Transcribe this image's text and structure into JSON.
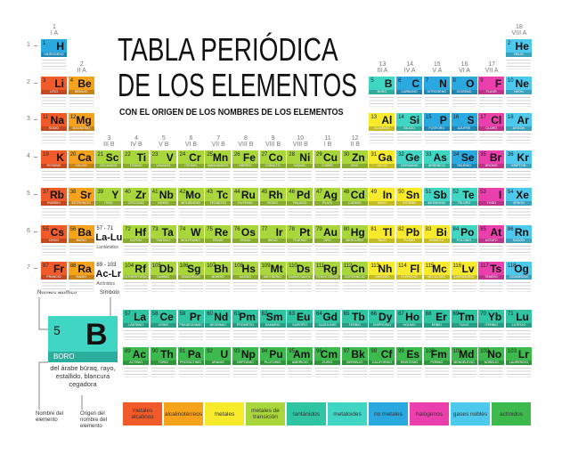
{
  "title": [
    "TABLA PERIÓDICA",
    "DE LOS ELEMENTOS"
  ],
  "subtitle": "CON EL ORIGEN DE LOS NOMBRES DE LOS ELEMENTOS",
  "groups": [
    {
      "number": 1,
      "label": "I A"
    },
    {
      "number": 2,
      "label": "II A"
    },
    {
      "number": 3,
      "label": "III B"
    },
    {
      "number": 4,
      "label": "IV B"
    },
    {
      "number": 5,
      "label": "V B"
    },
    {
      "number": 6,
      "label": "VI B"
    },
    {
      "number": 7,
      "label": "VII B"
    },
    {
      "number": 8,
      "label": "VIII B"
    },
    {
      "number": 9,
      "label": "VIII B"
    },
    {
      "number": 10,
      "label": "VIII B"
    },
    {
      "number": 11,
      "label": "I B"
    },
    {
      "number": 12,
      "label": "II B"
    },
    {
      "number": 13,
      "label": "III A"
    },
    {
      "number": 14,
      "label": "IV A"
    },
    {
      "number": 15,
      "label": "V A"
    },
    {
      "number": 16,
      "label": "VI A"
    },
    {
      "number": 17,
      "label": "VII A"
    },
    {
      "number": 18,
      "label": "VIII A"
    }
  ],
  "periods": [
    1,
    2,
    3,
    4,
    5,
    6,
    7
  ],
  "placeholders": [
    {
      "range": "57 - 71",
      "symbols": "La-Lu",
      "label": "Lantánidos"
    },
    {
      "range": "89 - 103",
      "symbols": "Ac-Lr",
      "label": "Actínidos"
    }
  ],
  "key": {
    "atomic_number_label": "Número atómico",
    "symbol_label": "Símbolo",
    "number": 5,
    "symbol": "B",
    "name": "BORO",
    "origin": "del árabe būraq, rayo, estallido, blancura cegadora",
    "name_label": "Nombre del elemento",
    "origin_label": "Origen del nombre del elemento"
  },
  "legend": [
    {
      "label": "metales alcalinos",
      "color": "#f15a29",
      "elements": [
        {
          "number": 3,
          "symbol": "Li",
          "name": "LITIO"
        },
        {
          "number": 11,
          "symbol": "Na",
          "name": "SODIO"
        },
        {
          "number": 19,
          "symbol": "K",
          "name": "POTASIO"
        },
        {
          "number": 37,
          "symbol": "Rb",
          "name": "RUBIDIO"
        },
        {
          "number": 55,
          "symbol": "Cs",
          "name": "CESIO"
        },
        {
          "number": 87,
          "symbol": "Fr",
          "name": "FRANCIO"
        }
      ]
    },
    {
      "label": "alcalinotérreos",
      "color": "#f7a21b",
      "elements": [
        {
          "number": 4,
          "symbol": "Be",
          "name": "BERILIO"
        },
        {
          "number": 12,
          "symbol": "Mg",
          "name": "MAGNESIO"
        },
        {
          "number": 20,
          "symbol": "Ca",
          "name": "CALCIO"
        },
        {
          "number": 38,
          "symbol": "Sr",
          "name": "ESTRONCIO"
        },
        {
          "number": 56,
          "symbol": "Ba",
          "name": "BARIO"
        },
        {
          "number": 88,
          "symbol": "Ra",
          "name": "RADIO"
        }
      ]
    },
    {
      "label": "metales",
      "color": "#f6ea2b",
      "elements": [
        {
          "number": 13,
          "symbol": "Al",
          "name": "ALUMINIO"
        },
        {
          "number": 31,
          "symbol": "Ga",
          "name": "GALIO"
        },
        {
          "number": 49,
          "symbol": "In",
          "name": "INDIO"
        },
        {
          "number": 50,
          "symbol": "Sn",
          "name": "ESTAÑO"
        },
        {
          "number": 81,
          "symbol": "Tl",
          "name": "TALIO"
        },
        {
          "number": 82,
          "symbol": "Pb",
          "name": "PLOMO"
        },
        {
          "number": 83,
          "symbol": "Bi",
          "name": "BISMUTO"
        },
        {
          "number": 113,
          "symbol": "Nh",
          "name": "NIHONIO"
        },
        {
          "number": 114,
          "symbol": "Fl",
          "name": "FLEROVIO"
        },
        {
          "number": 115,
          "symbol": "Mc",
          "name": "MOSCOVIO"
        },
        {
          "number": 116,
          "symbol": "Lv",
          "name": "LIVERMORIO"
        }
      ]
    },
    {
      "label": "metales de transición",
      "color": "#a9d63a",
      "elements": [
        {
          "number": 21,
          "symbol": "Sc",
          "name": "ESCANDIO"
        },
        {
          "number": 22,
          "symbol": "Ti",
          "name": "TITANIO"
        },
        {
          "number": 23,
          "symbol": "V",
          "name": "VANADIO"
        },
        {
          "number": 24,
          "symbol": "Cr",
          "name": "CROMO"
        },
        {
          "number": 25,
          "symbol": "Mn",
          "name": "MANGANESO"
        },
        {
          "number": 26,
          "symbol": "Fe",
          "name": "HIERRO"
        },
        {
          "number": 27,
          "symbol": "Co",
          "name": "COBALTO"
        },
        {
          "number": 28,
          "symbol": "Ni",
          "name": "NÍQUEL"
        },
        {
          "number": 29,
          "symbol": "Cu",
          "name": "COBRE"
        },
        {
          "number": 30,
          "symbol": "Zn",
          "name": "ZINC"
        },
        {
          "number": 39,
          "symbol": "Y",
          "name": "ITRIO"
        },
        {
          "number": 40,
          "symbol": "Zr",
          "name": "CIRCONIO"
        },
        {
          "number": 41,
          "symbol": "Nb",
          "name": "NIOBIO"
        },
        {
          "number": 42,
          "symbol": "Mo",
          "name": "MOLIBDENO"
        },
        {
          "number": 43,
          "symbol": "Tc",
          "name": "TECNECIO"
        },
        {
          "number": 44,
          "symbol": "Ru",
          "name": "RUTENIO"
        },
        {
          "number": 45,
          "symbol": "Rh",
          "name": "RODIO"
        },
        {
          "number": 46,
          "symbol": "Pd",
          "name": "PALADIO"
        },
        {
          "number": 47,
          "symbol": "Ag",
          "name": "PLATA"
        },
        {
          "number": 48,
          "symbol": "Cd",
          "name": "CADMIO"
        },
        {
          "number": 72,
          "symbol": "Hf",
          "name": "HAFNIO"
        },
        {
          "number": 73,
          "symbol": "Ta",
          "name": "TÁNTALO"
        },
        {
          "number": 74,
          "symbol": "W",
          "name": "WOLFRAMIO"
        },
        {
          "number": 75,
          "symbol": "Re",
          "name": "RENIO"
        },
        {
          "number": 76,
          "symbol": "Os",
          "name": "OSMIO"
        },
        {
          "number": 77,
          "symbol": "Ir",
          "name": "IRIDIO"
        },
        {
          "number": 78,
          "symbol": "Pt",
          "name": "PLATINO"
        },
        {
          "number": 79,
          "symbol": "Au",
          "name": "ORO"
        },
        {
          "number": 80,
          "symbol": "Hg",
          "name": "MERCURIO"
        },
        {
          "number": 104,
          "symbol": "Rf",
          "name": "RUTHERFORDIO"
        },
        {
          "number": 105,
          "symbol": "Db",
          "name": "DUBNIO"
        },
        {
          "number": 106,
          "symbol": "Sg",
          "name": "SEABORGIO"
        },
        {
          "number": 107,
          "symbol": "Bh",
          "name": "BOHRIO"
        },
        {
          "number": 108,
          "symbol": "Hs",
          "name": "HASSIO"
        },
        {
          "number": 109,
          "symbol": "Mt",
          "name": "MEITNERIO"
        },
        {
          "number": 110,
          "symbol": "Ds",
          "name": "DARMSTADTIO"
        },
        {
          "number": 111,
          "symbol": "Rg",
          "name": "ROENTGENIO"
        },
        {
          "number": 112,
          "symbol": "Cn",
          "name": "COPERNICIO"
        }
      ]
    },
    {
      "label": "lantánidos",
      "color": "#2fc4a2",
      "elements": [
        {
          "number": 57,
          "symbol": "La",
          "name": "LANTANO"
        },
        {
          "number": 58,
          "symbol": "Ce",
          "name": "CERIO"
        },
        {
          "number": 59,
          "symbol": "Pr",
          "name": "PRASEODIMIO"
        },
        {
          "number": 60,
          "symbol": "Nd",
          "name": "NEODIMIO"
        },
        {
          "number": 61,
          "symbol": "Pm",
          "name": "PROMETIO"
        },
        {
          "number": 62,
          "symbol": "Sm",
          "name": "SAMARIO"
        },
        {
          "number": 63,
          "symbol": "Eu",
          "name": "EUROPIO"
        },
        {
          "number": 64,
          "symbol": "Gd",
          "name": "GADOLINIO"
        },
        {
          "number": 65,
          "symbol": "Tb",
          "name": "TERBIO"
        },
        {
          "number": 66,
          "symbol": "Dy",
          "name": "DISPROSIO"
        },
        {
          "number": 67,
          "symbol": "Ho",
          "name": "HOLMIO"
        },
        {
          "number": 68,
          "symbol": "Er",
          "name": "ERBIO"
        },
        {
          "number": 69,
          "symbol": "Tm",
          "name": "TULIO"
        },
        {
          "number": 70,
          "symbol": "Yb",
          "name": "ITERBIO"
        },
        {
          "number": 71,
          "symbol": "Lu",
          "name": "LUTECIO"
        }
      ]
    },
    {
      "label": "metaloides",
      "color": "#3fd6c4",
      "elements": [
        {
          "number": 5,
          "symbol": "B",
          "name": "BORO"
        },
        {
          "number": 14,
          "symbol": "Si",
          "name": "SILICIO"
        },
        {
          "number": 32,
          "symbol": "Ge",
          "name": "GERMANIO"
        },
        {
          "number": 33,
          "symbol": "As",
          "name": "ARSÉNICO"
        },
        {
          "number": 51,
          "symbol": "Sb",
          "name": "ANTIMONIO"
        },
        {
          "number": 52,
          "symbol": "Te",
          "name": "TELURO"
        },
        {
          "number": 84,
          "symbol": "Po",
          "name": "POLONIO"
        }
      ]
    },
    {
      "label": "no metales",
      "color": "#2aa8e0",
      "elements": [
        {
          "number": 1,
          "symbol": "H",
          "name": "HIDRÓGENO"
        },
        {
          "number": 6,
          "symbol": "C",
          "name": "CARBONO"
        },
        {
          "number": 7,
          "symbol": "N",
          "name": "NITRÓGENO"
        },
        {
          "number": 8,
          "symbol": "O",
          "name": "OXÍGENO"
        },
        {
          "number": 15,
          "symbol": "P",
          "name": "FÓSFORO"
        },
        {
          "number": 16,
          "symbol": "S",
          "name": "AZUFRE"
        },
        {
          "number": 34,
          "symbol": "Se",
          "name": "SELENIO"
        }
      ]
    },
    {
      "label": "halógenos",
      "color": "#ec3fae",
      "elements": [
        {
          "number": 9,
          "symbol": "F",
          "name": "FLÚOR"
        },
        {
          "number": 17,
          "symbol": "Cl",
          "name": "CLORO"
        },
        {
          "number": 35,
          "symbol": "Br",
          "name": "BROMO"
        },
        {
          "number": 53,
          "symbol": "I",
          "name": "YODO"
        },
        {
          "number": 85,
          "symbol": "At",
          "name": "ASTATO"
        },
        {
          "number": 117,
          "symbol": "Ts",
          "name": "TENESO"
        }
      ]
    },
    {
      "label": "gases nobles",
      "color": "#4cc9ec",
      "elements": [
        {
          "number": 2,
          "symbol": "He",
          "name": "HELIO"
        },
        {
          "number": 10,
          "symbol": "Ne",
          "name": "NEÓN"
        },
        {
          "number": 18,
          "symbol": "Ar",
          "name": "ARGÓN"
        },
        {
          "number": 36,
          "symbol": "Kr",
          "name": "KRIPTÓN"
        },
        {
          "number": 54,
          "symbol": "Xe",
          "name": "XENÓN"
        },
        {
          "number": 86,
          "symbol": "Rn",
          "name": "RADÓN"
        },
        {
          "number": 118,
          "symbol": "Og",
          "name": "OGANESÓN"
        }
      ]
    },
    {
      "label": "actínidos",
      "color": "#3dba4e",
      "elements": [
        {
          "number": 89,
          "symbol": "Ac",
          "name": "ACTINIO"
        },
        {
          "number": 90,
          "symbol": "Th",
          "name": "TORIO"
        },
        {
          "number": 91,
          "symbol": "Pa",
          "name": "PROTACTINIO"
        },
        {
          "number": 92,
          "symbol": "U",
          "name": "URANIO"
        },
        {
          "number": 93,
          "symbol": "Np",
          "name": "NEPTUNIO"
        },
        {
          "number": 94,
          "symbol": "Pu",
          "name": "PLUTONIO"
        },
        {
          "number": 95,
          "symbol": "Am",
          "name": "AMERICIO"
        },
        {
          "number": 96,
          "symbol": "Cm",
          "name": "CURIO"
        },
        {
          "number": 97,
          "symbol": "Bk",
          "name": "BERKELIO"
        },
        {
          "number": 98,
          "symbol": "Cf",
          "name": "CALIFORNIO"
        },
        {
          "number": 99,
          "symbol": "Es",
          "name": "EINSTENIO"
        },
        {
          "number": 100,
          "symbol": "Fm",
          "name": "FERMIO"
        },
        {
          "number": 101,
          "symbol": "Md",
          "name": "MENDELEVIO"
        },
        {
          "number": 102,
          "symbol": "No",
          "name": "NOBELIO"
        },
        {
          "number": 103,
          "symbol": "Lr",
          "name": "LAURENCIO"
        }
      ]
    }
  ]
}
